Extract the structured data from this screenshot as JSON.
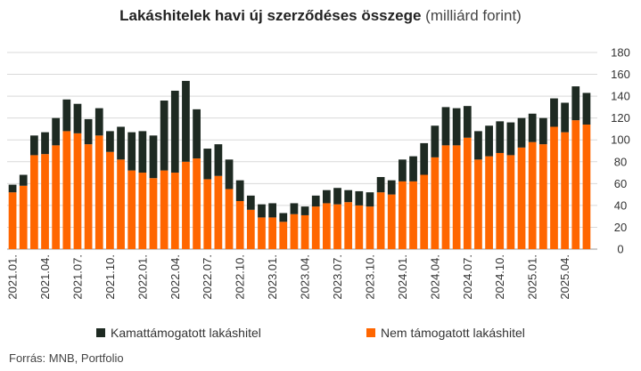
{
  "header": {
    "title_bold": "Lakáshitelek havi új szerződéses összege",
    "title_unit": "(milliárd forint)"
  },
  "footer": {
    "source": "Forrás: MNB, Portfolio"
  },
  "colors": {
    "support": "#1e2a22",
    "nonsupport": "#ff6600",
    "grid": "#d9d9d9",
    "text": "#333333"
  },
  "chart_data": {
    "type": "bar",
    "stacked": true,
    "title": "Lakáshitelek havi új szerződéses összege (milliárd forint)",
    "x": [
      "2021.01.",
      "2021.02.",
      "2021.03.",
      "2021.04.",
      "2021.05.",
      "2021.06.",
      "2021.07.",
      "2021.08.",
      "2021.09.",
      "2021.10.",
      "2021.11.",
      "2021.12.",
      "2022.01.",
      "2022.02.",
      "2022.03.",
      "2022.04.",
      "2022.05.",
      "2022.06.",
      "2022.07.",
      "2022.08.",
      "2022.09.",
      "2022.10.",
      "2022.11.",
      "2022.12.",
      "2023.01.",
      "2023.02.",
      "2023.03.",
      "2023.04.",
      "2023.05.",
      "2023.06.",
      "2023.07.",
      "2023.08.",
      "2023.09.",
      "2023.10.",
      "2023.11.",
      "2023.12.",
      "2024.01.",
      "2024.02.",
      "2024.03.",
      "2024.04.",
      "2024.05.",
      "2024.06.",
      "2024.07.",
      "2024.08.",
      "2024.09.",
      "2024.10.",
      "2024.11.",
      "2024.12.",
      "2025.01.",
      "2025.02.",
      "2025.03.",
      "2025.04.",
      "2025.05.",
      "2025.06."
    ],
    "tick_labels": [
      "2021.01.",
      "2021.04.",
      "2021.07.",
      "2021.10.",
      "2022.01.",
      "2022.04.",
      "2022.07.",
      "2022.10.",
      "2023.01.",
      "2023.04.",
      "2023.07.",
      "2023.10.",
      "2024.01.",
      "2024.04.",
      "2024.07.",
      "2024.10.",
      "2025.01.",
      "2025.04."
    ],
    "series": [
      {
        "name": "Nem támogatott lakáshitel",
        "values": [
          52,
          58,
          86,
          87,
          95,
          108,
          106,
          96,
          104,
          89,
          82,
          72,
          70,
          65,
          72,
          70,
          80,
          83,
          64,
          67,
          55,
          44,
          36,
          29,
          29,
          25,
          32,
          31,
          39,
          42,
          41,
          43,
          40,
          39,
          52,
          50,
          62,
          62,
          68,
          84,
          95,
          95,
          102,
          82,
          85,
          88,
          86,
          93,
          98,
          96,
          112,
          107,
          118,
          114
        ]
      },
      {
        "name": "Kamattámogatott lakáshitel",
        "values": [
          7,
          10,
          18,
          20,
          25,
          29,
          27,
          23,
          25,
          19,
          30,
          35,
          38,
          39,
          64,
          75,
          74,
          45,
          28,
          29,
          27,
          19,
          13,
          12,
          13,
          8,
          10,
          8,
          10,
          12,
          15,
          11,
          13,
          13,
          14,
          13,
          20,
          23,
          29,
          29,
          35,
          34,
          29,
          26,
          28,
          29,
          30,
          27,
          26,
          24,
          26,
          27,
          31,
          29
        ]
      }
    ],
    "ylim": [
      0,
      180
    ],
    "yticks": [
      0,
      20,
      40,
      60,
      80,
      100,
      120,
      140,
      160,
      180
    ],
    "y_axis_position": "right",
    "grid": true,
    "legend": "bottom"
  }
}
